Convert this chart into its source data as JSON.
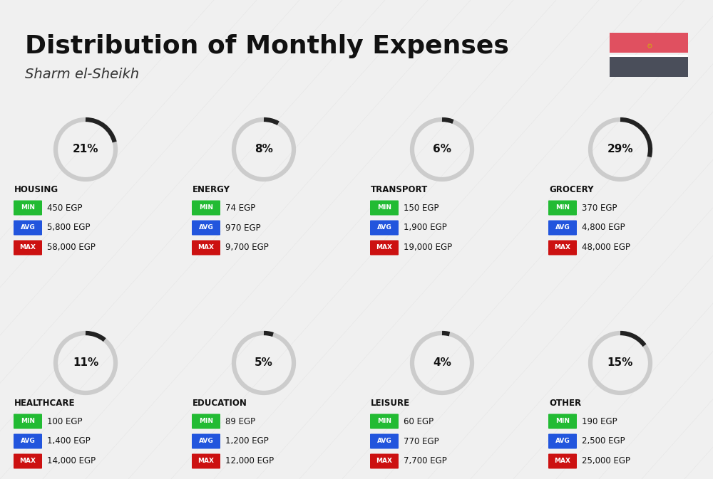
{
  "title": "Distribution of Monthly Expenses",
  "subtitle": "Sharm el-Sheikh",
  "background_color": "#f0f0f0",
  "categories": [
    {
      "name": "HOUSING",
      "pct": 21,
      "min": "450 EGP",
      "avg": "5,800 EGP",
      "max": "58,000 EGP",
      "row": 0,
      "col": 0
    },
    {
      "name": "ENERGY",
      "pct": 8,
      "min": "74 EGP",
      "avg": "970 EGP",
      "max": "9,700 EGP",
      "row": 0,
      "col": 1
    },
    {
      "name": "TRANSPORT",
      "pct": 6,
      "min": "150 EGP",
      "avg": "1,900 EGP",
      "max": "19,000 EGP",
      "row": 0,
      "col": 2
    },
    {
      "name": "GROCERY",
      "pct": 29,
      "min": "370 EGP",
      "avg": "4,800 EGP",
      "max": "48,000 EGP",
      "row": 0,
      "col": 3
    },
    {
      "name": "HEALTHCARE",
      "pct": 11,
      "min": "100 EGP",
      "avg": "1,400 EGP",
      "max": "14,000 EGP",
      "row": 1,
      "col": 0
    },
    {
      "name": "EDUCATION",
      "pct": 5,
      "min": "89 EGP",
      "avg": "1,200 EGP",
      "max": "12,000 EGP",
      "row": 1,
      "col": 1
    },
    {
      "name": "LEISURE",
      "pct": 4,
      "min": "60 EGP",
      "avg": "770 EGP",
      "max": "7,700 EGP",
      "row": 1,
      "col": 2
    },
    {
      "name": "OTHER",
      "pct": 15,
      "min": "190 EGP",
      "avg": "2,500 EGP",
      "max": "25,000 EGP",
      "row": 1,
      "col": 3
    }
  ],
  "min_color": "#22bb33",
  "avg_color": "#2255dd",
  "max_color": "#cc1111",
  "label_text_color": "#ffffff",
  "arc_active_color": "#222222",
  "arc_inactive_color": "#cccccc",
  "flag_red": "#e05060",
  "flag_dark": "#4a4e5a",
  "flag_gold": "#d4a017"
}
